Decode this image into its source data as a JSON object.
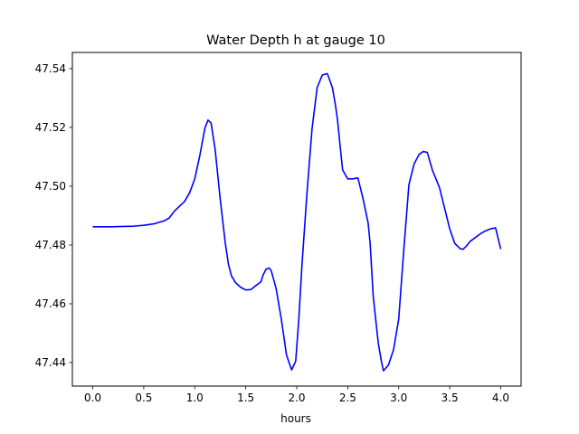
{
  "chart_data": {
    "type": "line",
    "title": "Water Depth h at gauge 10",
    "xlabel": "hours",
    "ylabel": "",
    "xlim": [
      -0.2,
      4.2
    ],
    "ylim": [
      47.432,
      47.5455
    ],
    "xticks": [
      0.0,
      0.5,
      1.0,
      1.5,
      2.0,
      2.5,
      3.0,
      3.5,
      4.0
    ],
    "xtick_labels": [
      "0.0",
      "0.5",
      "1.0",
      "1.5",
      "2.0",
      "2.5",
      "3.0",
      "3.5",
      "4.0"
    ],
    "yticks": [
      47.44,
      47.46,
      47.48,
      47.5,
      47.52,
      47.54
    ],
    "ytick_labels": [
      "47.44",
      "47.46",
      "47.48",
      "47.50",
      "47.52",
      "47.54"
    ],
    "grid": false,
    "series": [
      {
        "color": "#0000ff",
        "x": [
          0.0,
          0.2,
          0.4,
          0.5,
          0.6,
          0.7,
          0.75,
          0.8,
          0.9,
          0.95,
          1.0,
          1.05,
          1.1,
          1.13,
          1.16,
          1.2,
          1.25,
          1.3,
          1.33,
          1.36,
          1.4,
          1.45,
          1.5,
          1.55,
          1.6,
          1.65,
          1.67,
          1.7,
          1.73,
          1.75,
          1.78,
          1.8,
          1.85,
          1.9,
          1.95,
          1.99,
          2.02,
          2.05,
          2.1,
          2.15,
          2.2,
          2.25,
          2.3,
          2.35,
          2.38,
          2.4,
          2.42,
          2.45,
          2.5,
          2.55,
          2.6,
          2.65,
          2.7,
          2.72,
          2.75,
          2.8,
          2.83,
          2.85,
          2.9,
          2.95,
          3.0,
          3.05,
          3.1,
          3.15,
          3.2,
          3.24,
          3.28,
          3.33,
          3.4,
          3.45,
          3.5,
          3.55,
          3.6,
          3.63,
          3.66,
          3.7,
          3.75,
          3.8,
          3.85,
          3.9,
          3.95,
          4.0
        ],
        "y": [
          47.4862,
          47.4862,
          47.4864,
          47.4867,
          47.4872,
          47.4882,
          47.4892,
          47.4915,
          47.4948,
          47.4978,
          47.5025,
          47.5105,
          47.5198,
          47.5225,
          47.5215,
          47.5125,
          47.4955,
          47.4805,
          47.4735,
          47.4695,
          47.4672,
          47.4656,
          47.4647,
          47.4648,
          47.4662,
          47.4675,
          47.4698,
          47.4718,
          47.4722,
          47.4712,
          47.4675,
          47.4648,
          47.4545,
          47.4425,
          47.4375,
          47.4405,
          47.4545,
          47.4725,
          47.4975,
          47.5195,
          47.5335,
          47.5378,
          47.5383,
          47.5335,
          47.5275,
          47.5225,
          47.5155,
          47.5055,
          47.5025,
          47.5025,
          47.5028,
          47.4958,
          47.4875,
          47.4805,
          47.4625,
          47.4465,
          47.4405,
          47.4372,
          47.4392,
          47.4445,
          47.4548,
          47.4785,
          47.5005,
          47.5075,
          47.5108,
          47.5118,
          47.5115,
          47.5055,
          47.4995,
          47.4925,
          47.4855,
          47.4805,
          47.4788,
          47.4785,
          47.4795,
          47.4812,
          47.4825,
          47.4838,
          47.4848,
          47.4855,
          47.4858,
          47.4786
        ]
      }
    ]
  }
}
